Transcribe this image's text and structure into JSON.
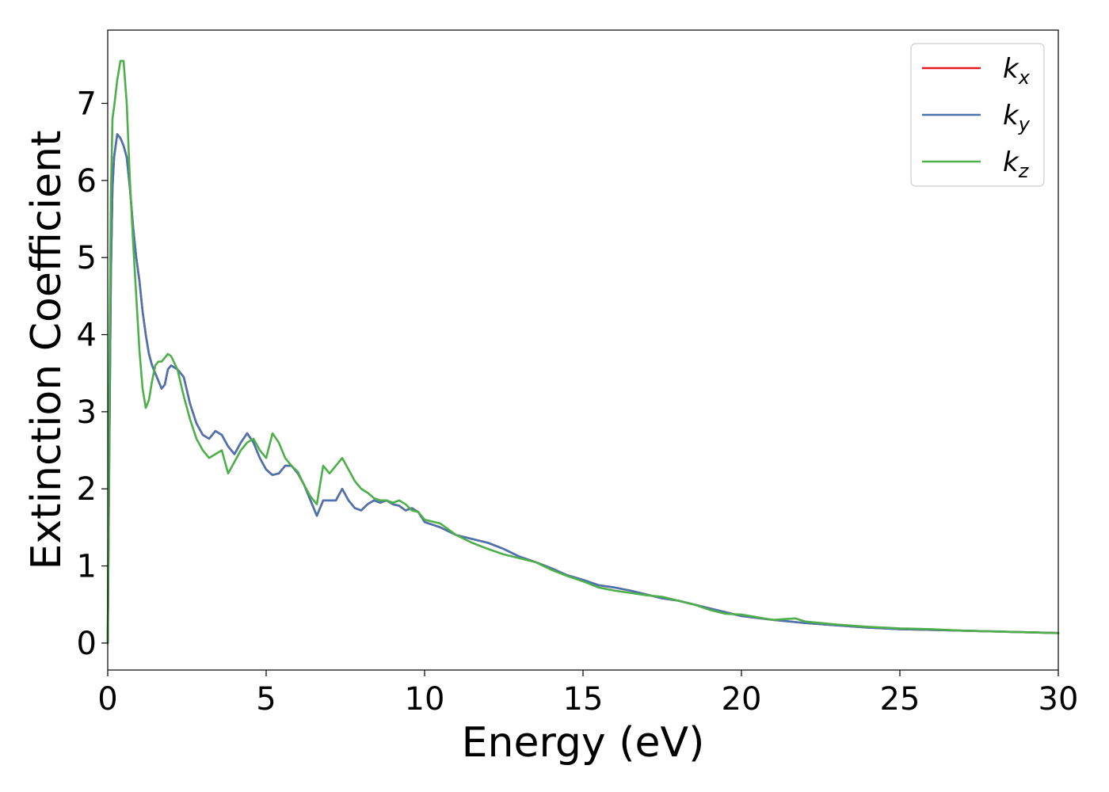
{
  "chart_data": {
    "type": "line",
    "xlabel": "Energy (eV)",
    "ylabel": "Extinction Coefficient",
    "xlim": [
      0,
      30
    ],
    "ylim": [
      -0.35,
      7.95
    ],
    "xticks": [
      "0",
      "5",
      "10",
      "15",
      "20",
      "25",
      "30"
    ],
    "yticks": [
      "0",
      "1",
      "2",
      "3",
      "4",
      "5",
      "6",
      "7"
    ],
    "grid": false,
    "legend_position": "top-right",
    "series": [
      {
        "name": "k_x",
        "legend_base": "k",
        "legend_sub": "x",
        "color": "#e41a1c",
        "x": [
          0,
          0.05,
          0.1,
          0.15,
          0.2,
          0.3,
          0.4,
          0.5,
          0.6,
          0.7,
          0.8,
          0.9,
          1.0,
          1.1,
          1.2,
          1.3,
          1.4,
          1.5,
          1.6,
          1.7,
          1.8,
          1.9,
          2.0,
          2.2,
          2.4,
          2.6,
          2.8,
          3.0,
          3.2,
          3.4,
          3.6,
          3.8,
          4.0,
          4.2,
          4.4,
          4.6,
          4.8,
          5.0,
          5.2,
          5.4,
          5.6,
          5.8,
          6.0,
          6.2,
          6.4,
          6.6,
          6.8,
          7.0,
          7.2,
          7.4,
          7.6,
          7.8,
          8.0,
          8.2,
          8.4,
          8.6,
          8.8,
          9.0,
          9.2,
          9.4,
          9.6,
          9.8,
          10.0,
          10.5,
          11.0,
          11.5,
          12.0,
          12.5,
          13.0,
          13.5,
          14.0,
          14.5,
          15.0,
          15.5,
          16.0,
          16.5,
          17.0,
          17.5,
          18.0,
          18.5,
          19.0,
          19.5,
          20.0,
          21.0,
          22.0,
          23.0,
          24.0,
          25.0,
          26.0,
          27.0,
          28.0,
          29.0,
          30.0
        ],
        "y": [
          0,
          2.5,
          4.8,
          5.9,
          6.3,
          6.6,
          6.55,
          6.45,
          6.3,
          5.9,
          5.4,
          5.0,
          4.7,
          4.3,
          4.0,
          3.75,
          3.6,
          3.5,
          3.4,
          3.3,
          3.35,
          3.55,
          3.6,
          3.55,
          3.45,
          3.1,
          2.85,
          2.7,
          2.65,
          2.75,
          2.7,
          2.55,
          2.45,
          2.6,
          2.72,
          2.6,
          2.4,
          2.25,
          2.18,
          2.2,
          2.3,
          2.3,
          2.2,
          2.05,
          1.85,
          1.65,
          1.85,
          1.85,
          1.85,
          2.0,
          1.85,
          1.75,
          1.72,
          1.8,
          1.85,
          1.82,
          1.85,
          1.8,
          1.78,
          1.72,
          1.75,
          1.7,
          1.57,
          1.5,
          1.4,
          1.35,
          1.3,
          1.22,
          1.12,
          1.05,
          0.97,
          0.88,
          0.82,
          0.75,
          0.72,
          0.68,
          0.63,
          0.58,
          0.55,
          0.5,
          0.45,
          0.4,
          0.35,
          0.3,
          0.26,
          0.23,
          0.2,
          0.18,
          0.17,
          0.16,
          0.15,
          0.14,
          0.13
        ]
      },
      {
        "name": "k_y",
        "legend_base": "k",
        "legend_sub": "y",
        "color": "#4a74b0",
        "x": [
          0,
          0.05,
          0.1,
          0.15,
          0.2,
          0.3,
          0.4,
          0.5,
          0.6,
          0.7,
          0.8,
          0.9,
          1.0,
          1.1,
          1.2,
          1.3,
          1.4,
          1.5,
          1.6,
          1.7,
          1.8,
          1.9,
          2.0,
          2.2,
          2.4,
          2.6,
          2.8,
          3.0,
          3.2,
          3.4,
          3.6,
          3.8,
          4.0,
          4.2,
          4.4,
          4.6,
          4.8,
          5.0,
          5.2,
          5.4,
          5.6,
          5.8,
          6.0,
          6.2,
          6.4,
          6.6,
          6.8,
          7.0,
          7.2,
          7.4,
          7.6,
          7.8,
          8.0,
          8.2,
          8.4,
          8.6,
          8.8,
          9.0,
          9.2,
          9.4,
          9.6,
          9.8,
          10.0,
          10.5,
          11.0,
          11.5,
          12.0,
          12.5,
          13.0,
          13.5,
          14.0,
          14.5,
          15.0,
          15.5,
          16.0,
          16.5,
          17.0,
          17.5,
          18.0,
          18.5,
          19.0,
          19.5,
          20.0,
          21.0,
          22.0,
          23.0,
          24.0,
          25.0,
          26.0,
          27.0,
          28.0,
          29.0,
          30.0
        ],
        "y": [
          0,
          2.5,
          4.8,
          5.9,
          6.3,
          6.6,
          6.55,
          6.45,
          6.3,
          5.9,
          5.4,
          5.0,
          4.7,
          4.3,
          4.0,
          3.75,
          3.6,
          3.5,
          3.4,
          3.3,
          3.35,
          3.55,
          3.6,
          3.55,
          3.45,
          3.1,
          2.85,
          2.7,
          2.65,
          2.75,
          2.7,
          2.55,
          2.45,
          2.6,
          2.72,
          2.6,
          2.4,
          2.25,
          2.18,
          2.2,
          2.3,
          2.3,
          2.2,
          2.05,
          1.85,
          1.65,
          1.85,
          1.85,
          1.85,
          2.0,
          1.85,
          1.75,
          1.72,
          1.8,
          1.85,
          1.82,
          1.85,
          1.8,
          1.78,
          1.72,
          1.75,
          1.7,
          1.57,
          1.5,
          1.4,
          1.35,
          1.3,
          1.22,
          1.12,
          1.05,
          0.97,
          0.88,
          0.82,
          0.75,
          0.72,
          0.68,
          0.63,
          0.58,
          0.55,
          0.5,
          0.45,
          0.4,
          0.35,
          0.3,
          0.26,
          0.23,
          0.2,
          0.18,
          0.17,
          0.16,
          0.15,
          0.14,
          0.13
        ]
      },
      {
        "name": "k_z",
        "legend_base": "k",
        "legend_sub": "z",
        "color": "#4daf4a",
        "x": [
          0,
          0.05,
          0.1,
          0.15,
          0.2,
          0.3,
          0.4,
          0.5,
          0.6,
          0.7,
          0.8,
          0.9,
          1.0,
          1.1,
          1.2,
          1.3,
          1.4,
          1.5,
          1.6,
          1.7,
          1.8,
          1.9,
          2.0,
          2.2,
          2.4,
          2.6,
          2.8,
          3.0,
          3.2,
          3.4,
          3.6,
          3.8,
          4.0,
          4.2,
          4.4,
          4.6,
          4.8,
          5.0,
          5.2,
          5.4,
          5.6,
          5.8,
          6.0,
          6.2,
          6.4,
          6.6,
          6.8,
          7.0,
          7.2,
          7.4,
          7.6,
          7.8,
          8.0,
          8.2,
          8.4,
          8.6,
          8.8,
          9.0,
          9.2,
          9.4,
          9.6,
          9.8,
          10.0,
          10.5,
          11.0,
          11.5,
          12.0,
          12.5,
          13.0,
          13.5,
          14.0,
          14.5,
          15.0,
          15.5,
          16.0,
          16.5,
          17.0,
          17.5,
          18.0,
          18.5,
          19.0,
          19.5,
          20.0,
          21.0,
          21.7,
          22.0,
          23.0,
          24.0,
          25.0,
          26.0,
          27.0,
          28.0,
          29.0,
          30.0
        ],
        "y": [
          0,
          3.5,
          5.8,
          6.8,
          6.95,
          7.3,
          7.55,
          7.55,
          7.0,
          6.0,
          5.2,
          4.5,
          3.8,
          3.3,
          3.05,
          3.15,
          3.4,
          3.6,
          3.65,
          3.65,
          3.7,
          3.75,
          3.72,
          3.55,
          3.2,
          2.9,
          2.65,
          2.5,
          2.4,
          2.45,
          2.5,
          2.2,
          2.35,
          2.5,
          2.6,
          2.65,
          2.5,
          2.4,
          2.72,
          2.6,
          2.4,
          2.3,
          2.22,
          2.05,
          1.9,
          1.8,
          2.3,
          2.2,
          2.3,
          2.4,
          2.25,
          2.1,
          2.0,
          1.95,
          1.88,
          1.85,
          1.85,
          1.82,
          1.85,
          1.8,
          1.72,
          1.7,
          1.6,
          1.55,
          1.4,
          1.3,
          1.22,
          1.15,
          1.1,
          1.05,
          0.95,
          0.87,
          0.8,
          0.72,
          0.68,
          0.65,
          0.62,
          0.6,
          0.55,
          0.5,
          0.43,
          0.38,
          0.37,
          0.3,
          0.32,
          0.28,
          0.24,
          0.21,
          0.19,
          0.18,
          0.16,
          0.15,
          0.14,
          0.13
        ]
      }
    ]
  }
}
